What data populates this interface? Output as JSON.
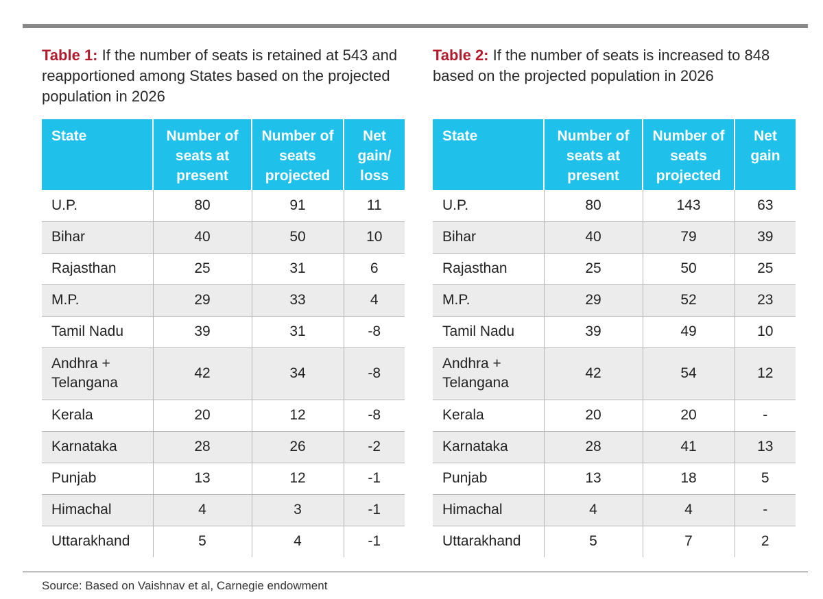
{
  "colors": {
    "accent_label": "#b01c2e",
    "header_bg": "#1fc0ea",
    "stripe": "#ececec",
    "rule": "#888888"
  },
  "table1": {
    "label": "Table 1:",
    "caption": "If the number of seats is retained at 543 and reapportioned among States based on the projected population in 2026",
    "headers": [
      "State",
      "Number of seats at present",
      "Number of seats projected",
      "Net gain/ loss"
    ],
    "rows": [
      [
        "U.P.",
        "80",
        "91",
        "11"
      ],
      [
        "Bihar",
        "40",
        "50",
        "10"
      ],
      [
        "Rajasthan",
        "25",
        "31",
        "6"
      ],
      [
        "M.P.",
        "29",
        "33",
        "4"
      ],
      [
        "Tamil Nadu",
        "39",
        "31",
        "-8"
      ],
      [
        "Andhra + Telangana",
        "42",
        "34",
        "-8"
      ],
      [
        "Kerala",
        "20",
        "12",
        "-8"
      ],
      [
        "Karnataka",
        "28",
        "26",
        "-2"
      ],
      [
        "Punjab",
        "13",
        "12",
        "-1"
      ],
      [
        "Himachal",
        "4",
        "3",
        "-1"
      ],
      [
        "Uttarakhand",
        "5",
        "4",
        "-1"
      ]
    ]
  },
  "table2": {
    "label": "Table 2:",
    "caption": "If the number of seats is increased to 848 based on the projected population in 2026",
    "headers": [
      "State",
      "Number of seats at present",
      "Number of seats projected",
      "Net gain"
    ],
    "rows": [
      [
        "U.P.",
        "80",
        "143",
        "63"
      ],
      [
        "Bihar",
        "40",
        "79",
        "39"
      ],
      [
        "Rajasthan",
        "25",
        "50",
        "25"
      ],
      [
        "M.P.",
        "29",
        "52",
        "23"
      ],
      [
        "Tamil Nadu",
        "39",
        "49",
        "10"
      ],
      [
        "Andhra + Telangana",
        "42",
        "54",
        "12"
      ],
      [
        "Kerala",
        "20",
        "20",
        "-"
      ],
      [
        "Karnataka",
        "28",
        "41",
        "13"
      ],
      [
        "Punjab",
        "13",
        "18",
        "5"
      ],
      [
        "Himachal",
        "4",
        "4",
        "-"
      ],
      [
        "Uttarakhand",
        "5",
        "7",
        "2"
      ]
    ]
  },
  "source": "Source: Based on Vaishnav et al, Carnegie endowment"
}
